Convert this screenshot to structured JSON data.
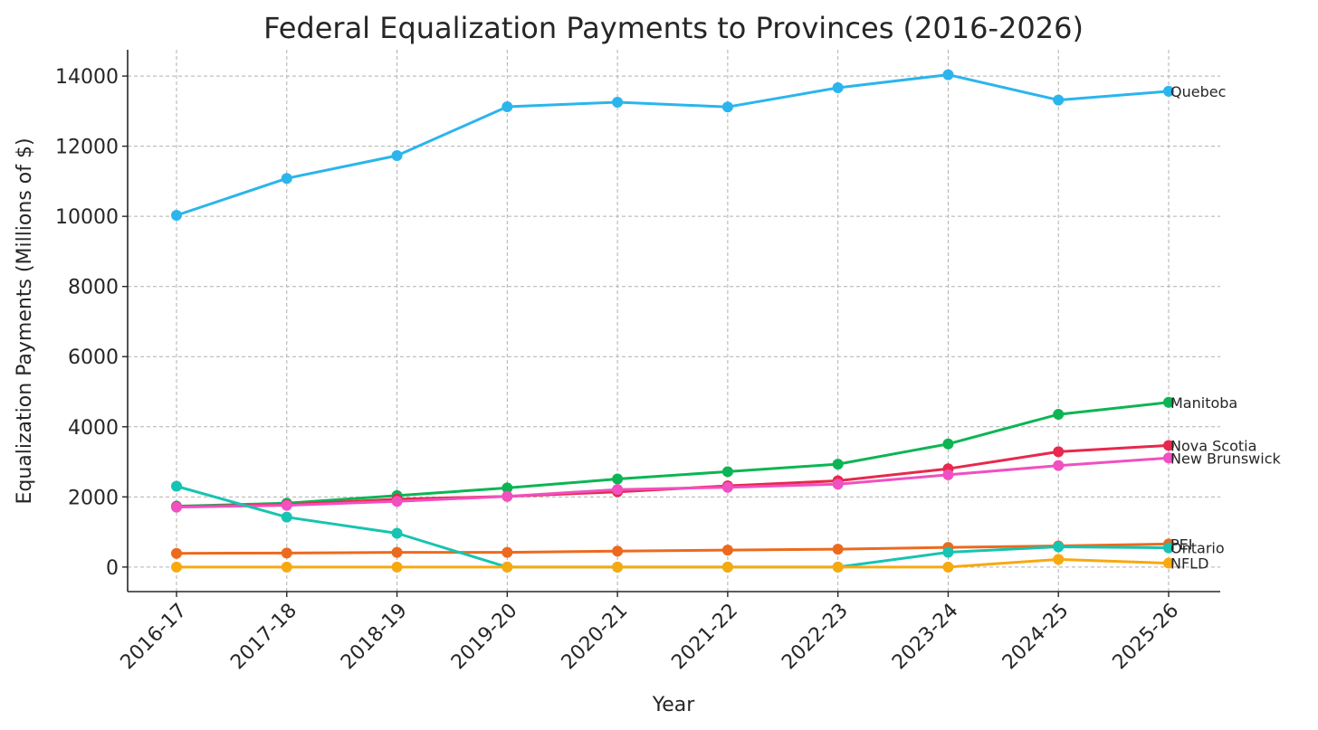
{
  "chart_data": {
    "type": "line",
    "title": "Federal Equalization Payments to Provinces (2016-2026)",
    "xlabel": "Year",
    "ylabel": "Equalization Payments (Millions of $)",
    "categories": [
      "2016-17",
      "2017-18",
      "2018-19",
      "2019-20",
      "2020-21",
      "2021-22",
      "2022-23",
      "2023-24",
      "2024-25",
      "2025-26"
    ],
    "ylim": [
      -700,
      14750
    ],
    "yticks": [
      0,
      2000,
      4000,
      6000,
      8000,
      10000,
      12000,
      14000
    ],
    "grid": true,
    "legend": "inline labels at line ends",
    "series": [
      {
        "name": "Quebec",
        "color": "#2bb5ec",
        "values": [
          10030,
          11081,
          11732,
          13124,
          13253,
          13119,
          13666,
          14037,
          13315,
          13567
        ]
      },
      {
        "name": "Manitoba",
        "color": "#0cb554",
        "values": [
          1736,
          1820,
          2037,
          2255,
          2510,
          2719,
          2933,
          3510,
          4354,
          4697
        ]
      },
      {
        "name": "Nova Scotia",
        "color": "#e8284d",
        "values": [
          1722,
          1779,
          1933,
          2015,
          2146,
          2315,
          2460,
          2803,
          3287,
          3467
        ]
      },
      {
        "name": "New Brunswick",
        "color": "#f050c0",
        "values": [
          1708,
          1760,
          1874,
          2017,
          2210,
          2274,
          2364,
          2631,
          2894,
          3110
        ]
      },
      {
        "name": "PEI",
        "color": "#ec6a1e",
        "values": [
          390,
          400,
          419,
          419,
          454,
          484,
          510,
          561,
          603,
          656
        ]
      },
      {
        "name": "Ontario",
        "color": "#17c3b2",
        "values": [
          2304,
          1424,
          963,
          0,
          0,
          0,
          0,
          421,
          576,
          548
        ]
      },
      {
        "name": "NFLD",
        "color": "#f7a910",
        "values": [
          0,
          0,
          0,
          0,
          0,
          0,
          0,
          0,
          218,
          111
        ]
      }
    ]
  }
}
